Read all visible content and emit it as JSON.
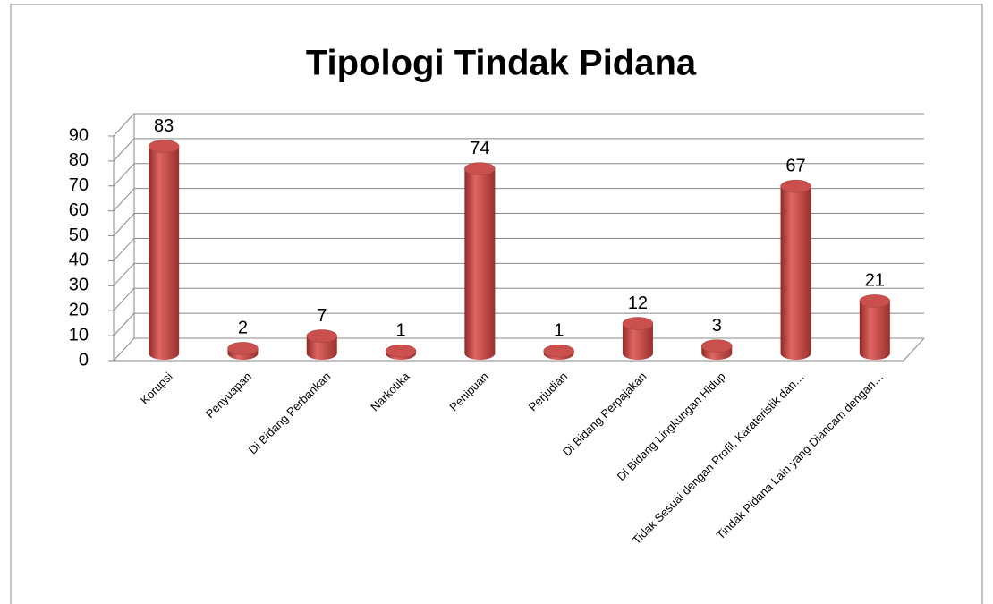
{
  "chart_data": {
    "type": "bar",
    "title": "Tipologi Tindak Pidana",
    "categories": [
      "Korupsi",
      "Penyuapan",
      "Di Bidang Perbankan",
      "Narkotika",
      "Penipuan",
      "Perjudian",
      "Di Bidang Perpajakan",
      "Di Bidang Lingkungan Hidup",
      "Tidak Sesuai dengan Profil, Karateristik dan…",
      "Tindak Pidana Lain yang Diancam dengan…"
    ],
    "values": [
      83,
      2,
      7,
      1,
      74,
      1,
      12,
      3,
      67,
      21
    ],
    "color": "#c0504d",
    "ylim": [
      0,
      90
    ],
    "yticks": [
      0,
      10,
      20,
      30,
      40,
      50,
      60,
      70,
      80,
      90
    ],
    "grid": true
  }
}
